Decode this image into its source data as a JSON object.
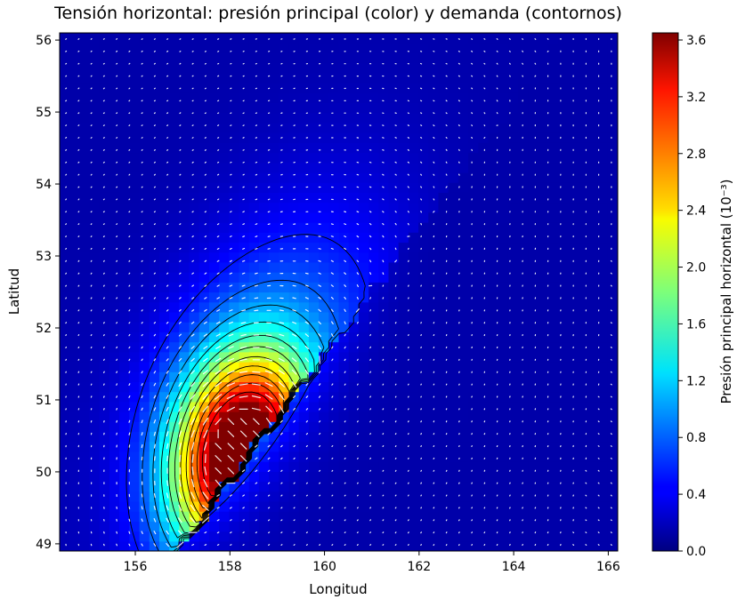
{
  "chart_data": {
    "type": "heatmap",
    "title": "Tensión horizontal: presión principal (color) y demanda (contornos)",
    "xlabel": "Longitud",
    "ylabel": "Latitud",
    "xlim": [
      154.4,
      166.2
    ],
    "ylim": [
      48.9,
      56.1
    ],
    "xticks": [
      "156",
      "158",
      "160",
      "162",
      "164",
      "166"
    ],
    "yticks": [
      "49",
      "50",
      "51",
      "52",
      "53",
      "54",
      "55",
      "56"
    ],
    "colorbar": {
      "label": "Presión principal horizontal (10⁻³)",
      "range": [
        0.0,
        3.65
      ],
      "ticks": [
        "0.0",
        "0.4",
        "0.8",
        "1.2",
        "1.6",
        "2.0",
        "2.4",
        "2.8",
        "3.2",
        "3.6"
      ],
      "colormap": "jet"
    },
    "field": {
      "peak": {
        "lon": 158.3,
        "lat": 50.3,
        "value": 3.6
      },
      "background": 0.15,
      "contour_levels": 11,
      "vectors": "white arrows, direction of horizontal stress"
    },
    "grid": false
  },
  "colors": {
    "contour": "#000000",
    "arrow": "#ffffff",
    "background": "#ffffff"
  }
}
